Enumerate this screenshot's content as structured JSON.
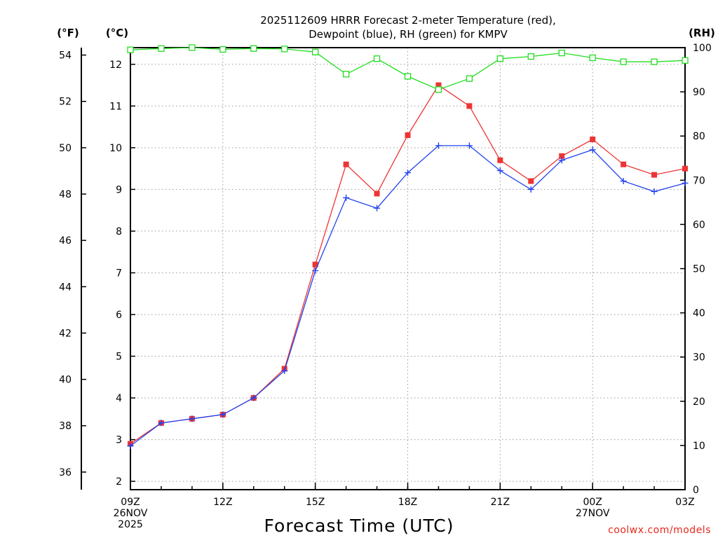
{
  "chart_data": {
    "type": "line",
    "title_line1": "2025112609 HRRR Forecast 2-meter Temperature (red),",
    "title_line2": "Dewpoint (blue), RH (green) for KMPV",
    "xlabel": "Forecast Time (UTC)",
    "credit": "coolwx.com/models",
    "left_f_label": "(°F)",
    "left_c_label": "(°C)",
    "right_label": "(RH)",
    "x_hours": [
      0,
      1,
      2,
      3,
      4,
      5,
      6,
      7,
      8,
      9,
      10,
      11,
      12,
      13,
      14,
      15,
      16,
      17,
      18
    ],
    "x_ticks": [
      {
        "hour": 0,
        "lines": [
          "09Z",
          "26NOV",
          "2025"
        ]
      },
      {
        "hour": 3,
        "lines": [
          "12Z"
        ]
      },
      {
        "hour": 6,
        "lines": [
          "15Z"
        ]
      },
      {
        "hour": 9,
        "lines": [
          "18Z"
        ]
      },
      {
        "hour": 12,
        "lines": [
          "21Z"
        ]
      },
      {
        "hour": 15,
        "lines": [
          "00Z",
          "27NOV"
        ]
      },
      {
        "hour": 18,
        "lines": [
          "03Z"
        ]
      }
    ],
    "celsius_ticks": [
      2,
      3,
      4,
      5,
      6,
      7,
      8,
      9,
      10,
      11,
      12
    ],
    "fahrenheit_ticks": [
      36,
      38,
      40,
      42,
      44,
      46,
      48,
      50,
      52,
      54
    ],
    "rh_ticks": [
      0,
      10,
      20,
      30,
      40,
      50,
      60,
      70,
      80,
      90,
      100
    ],
    "ylim_c": [
      1.8,
      12.4
    ],
    "ylim_rh": [
      0,
      100
    ],
    "series": [
      {
        "name": "Temperature",
        "unit": "C",
        "color": "#ee3333",
        "marker": "filled-square",
        "values": [
          2.9,
          3.4,
          3.5,
          3.6,
          4.0,
          4.7,
          7.2,
          9.6,
          8.9,
          10.3,
          11.5,
          11.0,
          9.7,
          9.2,
          9.8,
          10.2,
          9.6,
          9.35,
          9.5
        ]
      },
      {
        "name": "Dewpoint",
        "unit": "C",
        "color": "#2244ee",
        "marker": "plus",
        "values": [
          2.85,
          3.4,
          3.5,
          3.6,
          4.0,
          4.65,
          7.05,
          8.8,
          8.55,
          9.4,
          10.05,
          10.05,
          9.45,
          9.0,
          9.7,
          9.95,
          9.2,
          8.95,
          9.15
        ]
      },
      {
        "name": "RH",
        "unit": "%",
        "color": "#22dd22",
        "marker": "open-square",
        "values": [
          99.5,
          99.8,
          100.0,
          99.6,
          99.8,
          99.7,
          99.0,
          94.0,
          97.5,
          93.5,
          90.5,
          93.0,
          97.5,
          98.0,
          98.8,
          97.7,
          96.8,
          96.8,
          97.1
        ]
      }
    ]
  }
}
